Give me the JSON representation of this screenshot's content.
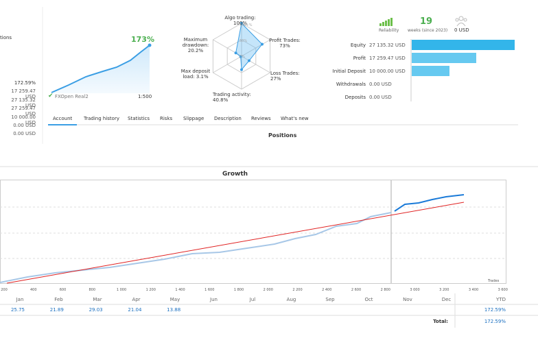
{
  "sidebar": {
    "label": "tions",
    "values": [
      "172.59%",
      "17 259.47 USD",
      "27 135.32 USD",
      "27 259.47 USD",
      "10 000.00 USD",
      "0.00 USD",
      "0.00 USD"
    ]
  },
  "mini_chart": {
    "gain": "173%",
    "account": "FXOpen Real2",
    "leverage": "1:500"
  },
  "radar": {
    "axes": [
      "Algo trading: 100%",
      "Profit Trades:\n73%",
      "Loss Trades: 27%",
      "Trading activity: 40.8%",
      "Max deposit\nload: 3.1%",
      "Maximum\ndrawdown:\n20.2%"
    ],
    "rings": [
      "100+%",
      "50%",
      "0%"
    ]
  },
  "stats": {
    "reliability": "Reliability",
    "weeks": "19",
    "weeks_label": "weeks (since 2023)",
    "subscribers": "0 USD",
    "rows": [
      {
        "label": "Equity",
        "value": "27 135.32 USD"
      },
      {
        "label": "Profit",
        "value": "17 259.47 USD"
      },
      {
        "label": "Initial Deposit",
        "value": "10 000.00 USD"
      },
      {
        "label": "Withdrawals",
        "value": "0.00 USD"
      },
      {
        "label": "Deposits",
        "value": "0.00 USD"
      }
    ]
  },
  "tabs": [
    "Account",
    "Trading history",
    "Statistics",
    "Risks",
    "Slippage",
    "Description",
    "Reviews",
    "What's new"
  ],
  "section": "Positions",
  "growth": {
    "title": "Growth",
    "x_labels": [
      "200",
      "400",
      "600",
      "800",
      "1 000",
      "1 200",
      "1 400",
      "1 600",
      "1 800",
      "2 000",
      "2 200",
      "2 400",
      "2 600",
      "2 800",
      "3 000",
      "3 200",
      "3 400",
      "3 600"
    ],
    "x_axis_label": "Trades"
  },
  "table": {
    "headers": [
      "Jan",
      "Feb",
      "Mar",
      "Apr",
      "May",
      "Jun",
      "Jul",
      "Aug",
      "Sep",
      "Oct",
      "Nov",
      "Dec",
      "YTD"
    ],
    "values": [
      "25.75",
      "21.89",
      "29.03",
      "21.04",
      "13.88"
    ],
    "ytd": "172.59%",
    "total_label": "Total:",
    "total": "172.59%"
  }
}
